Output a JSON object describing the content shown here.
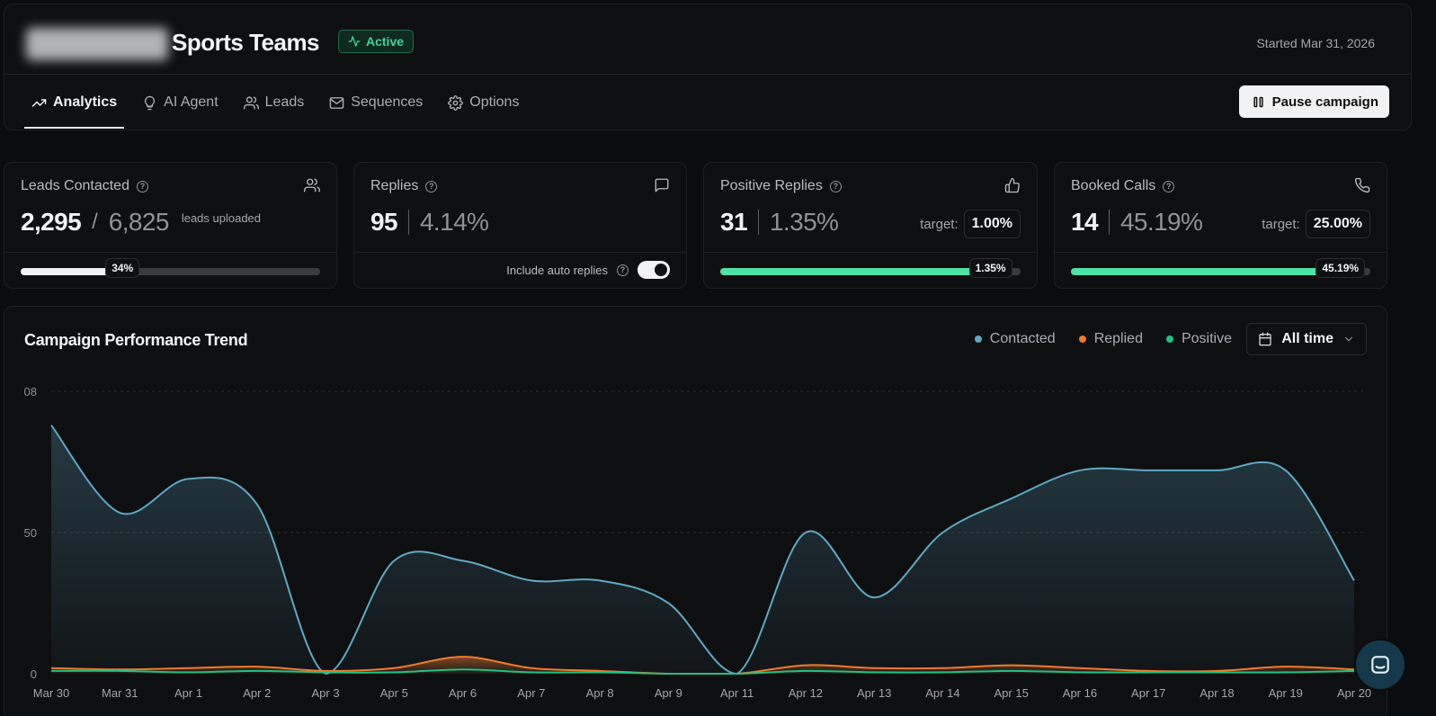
{
  "header": {
    "title": "Sports Teams",
    "status": "Active",
    "started": "Started Mar 31, 2026"
  },
  "tabs": [
    {
      "label": "Analytics",
      "icon": "trending-up-icon"
    },
    {
      "label": "AI Agent",
      "icon": "lightbulb-icon"
    },
    {
      "label": "Leads",
      "icon": "users-icon"
    },
    {
      "label": "Sequences",
      "icon": "mail-icon"
    },
    {
      "label": "Options",
      "icon": "gear-icon"
    }
  ],
  "pause_label": "Pause campaign",
  "stats": {
    "leads": {
      "label": "Leads Contacted",
      "value": "2,295",
      "total": "6,825",
      "note": "leads uploaded",
      "percent_label": "34%",
      "fill": 0.34
    },
    "replies": {
      "label": "Replies",
      "value": "95",
      "rate": "4.14%",
      "toggle_label": "Include auto replies"
    },
    "positive": {
      "label": "Positive Replies",
      "value": "31",
      "rate": "1.35%",
      "target_label": "target:",
      "target": "1.00%",
      "percent_label": "1.35%",
      "fill": 0.9
    },
    "booked": {
      "label": "Booked Calls",
      "value": "14",
      "rate": "45.19%",
      "target_label": "target:",
      "target": "25.00%",
      "percent_label": "45.19%",
      "fill": 0.9
    }
  },
  "chart": {
    "title": "Campaign Performance Trend",
    "legend": [
      {
        "name": "Contacted",
        "color": "#5fa8c4"
      },
      {
        "name": "Replied",
        "color": "#f07a2a"
      },
      {
        "name": "Positive",
        "color": "#1fc184"
      }
    ],
    "range": "All time",
    "y_ticks": [
      "08",
      "50",
      "0"
    ]
  },
  "chart_data": {
    "type": "area",
    "x": [
      "Mar 30",
      "Mar 31",
      "Apr 1",
      "Apr 2",
      "Apr 3",
      "Apr 5",
      "Apr 6",
      "Apr 7",
      "Apr 8",
      "Apr 9",
      "Apr 11",
      "Apr 12",
      "Apr 13",
      "Apr 14",
      "Apr 15",
      "Apr 16",
      "Apr 17",
      "Apr 18",
      "Apr 19",
      "Apr 20"
    ],
    "ylim": [
      0,
      100
    ],
    "grid": true,
    "legend_position": "top-right",
    "series": [
      {
        "name": "Contacted",
        "color": "#5fa8c4",
        "values": [
          88,
          57,
          69,
          60,
          0,
          40,
          40,
          33,
          33,
          25,
          0,
          50,
          27,
          50,
          62,
          72,
          72,
          72,
          72,
          33
        ]
      },
      {
        "name": "Replied",
        "color": "#f07a2a",
        "values": [
          2,
          1.5,
          2,
          2.5,
          1,
          2,
          6,
          2,
          1,
          0,
          0,
          3,
          2,
          2,
          3,
          2,
          1,
          1,
          2.5,
          1.5
        ]
      },
      {
        "name": "Positive",
        "color": "#1fc184",
        "values": [
          1,
          1,
          0.5,
          1,
          0.5,
          0.5,
          1.5,
          0.5,
          0.5,
          0,
          0,
          1,
          0.5,
          0.5,
          1,
          0.5,
          0.5,
          0.5,
          0.5,
          1
        ]
      }
    ]
  }
}
